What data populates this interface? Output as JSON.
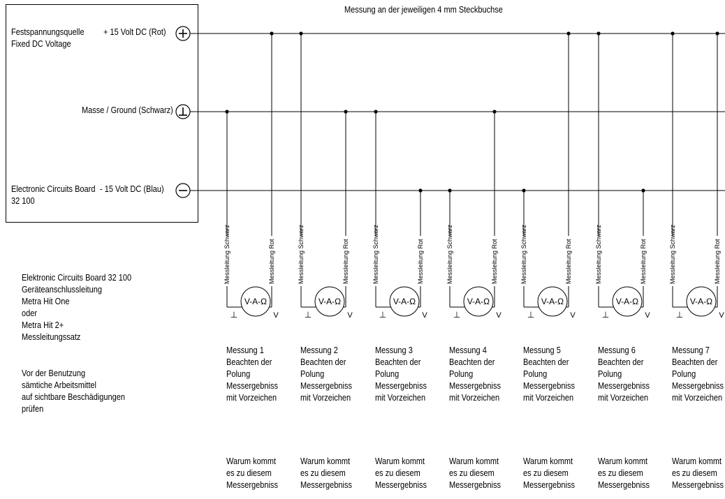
{
  "header": "Messung an der jeweiligen 4 mm Steckbuchse",
  "source_box": {
    "label_line1": "Festspannungsquelle",
    "label_line2": "Fixed DC Voltage",
    "plus_rail_label": "+ 15 Volt DC (Rot)",
    "ground_rail_label": "Masse / Ground (Schwarz)",
    "board_line1": "Electronic Circuits Board",
    "board_line2": "32 100",
    "minus_rail_label": "- 15 Volt DC (Blau)",
    "plus_symbol": "+",
    "minus_symbol": "−"
  },
  "side_notes": {
    "lines": [
      "Elektronic Circuits Board 32 100",
      "Geräteanschlussleitung",
      "Metra Hit One",
      "oder",
      "Metra Hit 2+",
      "Messleitungssatz",
      "",
      "Vor der Benutzung",
      "sämtiche Arbeitsmittel",
      "auf sichtbare Beschädigungen",
      "prüfen"
    ]
  },
  "probe_labels": {
    "black": "Messleitung Schwarz",
    "red": "Messleitung Rot",
    "meter": "V-A-Ω",
    "ground_terminal": "⊥",
    "volt_terminal": "V"
  },
  "measurements": [
    {
      "title": "Messung 1",
      "black_rail": "ground",
      "red_rail": "plus"
    },
    {
      "title": "Messung 2",
      "black_rail": "plus",
      "red_rail": "ground"
    },
    {
      "title": "Messung 3",
      "black_rail": "ground",
      "red_rail": "minus"
    },
    {
      "title": "Messung 4",
      "black_rail": "minus",
      "red_rail": "ground"
    },
    {
      "title": "Messung 5",
      "black_rail": "minus",
      "red_rail": "plus"
    },
    {
      "title": "Messung 6",
      "black_rail": "plus",
      "red_rail": "minus"
    },
    {
      "title": "Messung 7",
      "black_rail": "plus",
      "red_rail": "plus"
    }
  ],
  "measurement_note": [
    "Beachten der",
    "Polung",
    "Messergebniss",
    "mit Vorzeichen"
  ],
  "question_note": [
    "Warum kommt",
    "es zu diesem",
    "Messergebniss"
  ]
}
